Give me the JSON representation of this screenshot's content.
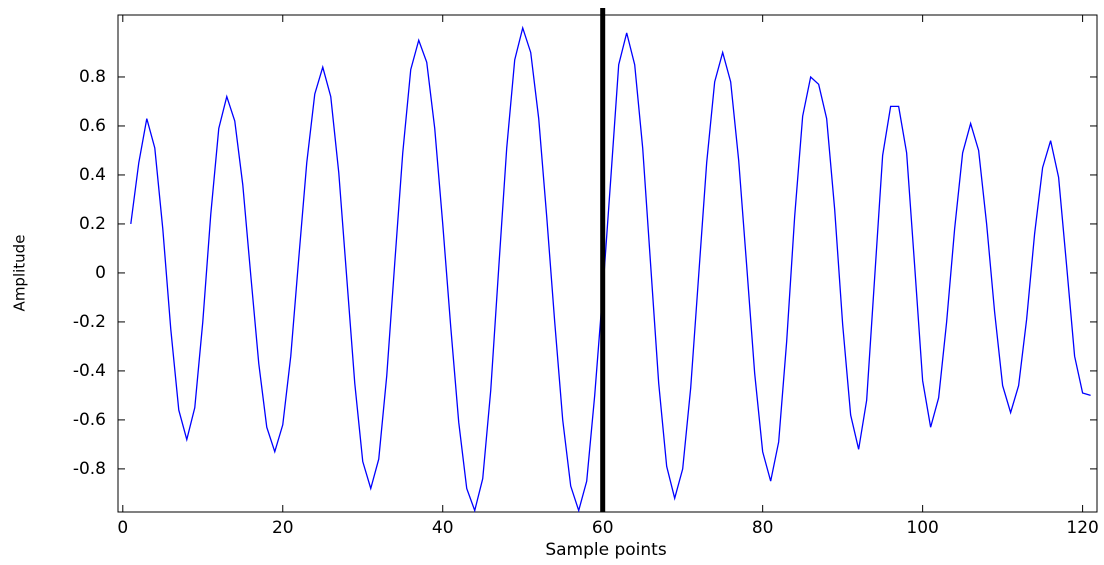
{
  "chart_data": {
    "type": "line",
    "x_label": "Sample points",
    "y_label": "Amplitude",
    "x": [
      1,
      2,
      3,
      4,
      5,
      6,
      7,
      8,
      9,
      10,
      11,
      12,
      13,
      14,
      15,
      16,
      17,
      18,
      19,
      20,
      21,
      22,
      23,
      24,
      25,
      26,
      27,
      28,
      29,
      30,
      31,
      32,
      33,
      34,
      35,
      36,
      37,
      38,
      39,
      40,
      41,
      42,
      43,
      44,
      45,
      46,
      47,
      48,
      49,
      50,
      51,
      52,
      53,
      54,
      55,
      56,
      57,
      58,
      59,
      60,
      61,
      62,
      63,
      64,
      65,
      66,
      67,
      68,
      69,
      70,
      71,
      72,
      73,
      74,
      75,
      76,
      77,
      78,
      79,
      80,
      81,
      82,
      83,
      84,
      85,
      86,
      87,
      88,
      89,
      90,
      91,
      92,
      93,
      94,
      95,
      96,
      97,
      98,
      99,
      100,
      101,
      102,
      103,
      104,
      105,
      106,
      107,
      108,
      109,
      110,
      111,
      112,
      113,
      114,
      115,
      116,
      117,
      118,
      119,
      120,
      121
    ],
    "series": [
      {
        "color": "#0000ff",
        "values": [
          0.2,
          0.45,
          0.63,
          0.51,
          0.18,
          -0.23,
          -0.56,
          -0.68,
          -0.55,
          -0.2,
          0.24,
          0.59,
          0.72,
          0.62,
          0.36,
          -0.01,
          -0.37,
          -0.63,
          -0.73,
          -0.62,
          -0.34,
          0.06,
          0.45,
          0.73,
          0.84,
          0.72,
          0.41,
          -0.02,
          -0.45,
          -0.77,
          -0.88,
          -0.76,
          -0.42,
          0.04,
          0.49,
          0.83,
          0.95,
          0.86,
          0.59,
          0.2,
          -0.22,
          -0.61,
          -0.88,
          -0.97,
          -0.84,
          -0.48,
          0.02,
          0.51,
          0.87,
          1.0,
          0.9,
          0.63,
          0.23,
          -0.2,
          -0.6,
          -0.87,
          -0.97,
          -0.85,
          -0.5,
          -0.08,
          0.38,
          0.85,
          0.98,
          0.85,
          0.51,
          0.03,
          -0.45,
          -0.79,
          -0.92,
          -0.8,
          -0.47,
          -0.01,
          0.45,
          0.78,
          0.9,
          0.78,
          0.46,
          0.03,
          -0.41,
          -0.73,
          -0.85,
          -0.69,
          -0.28,
          0.23,
          0.64,
          0.8,
          0.77,
          0.63,
          0.26,
          -0.21,
          -0.58,
          -0.72,
          -0.52,
          -0.02,
          0.48,
          0.68,
          0.68,
          0.49,
          0.03,
          -0.44,
          -0.63,
          -0.51,
          -0.2,
          0.18,
          0.49,
          0.61,
          0.5,
          0.2,
          -0.16,
          -0.46,
          -0.57,
          -0.46,
          -0.19,
          0.16,
          0.43,
          0.54,
          0.39,
          0.03,
          -0.34,
          -0.49,
          -0.5
        ]
      }
    ],
    "vertical_line": {
      "x": 60,
      "color": "#000000"
    },
    "xlim": [
      -0.6,
      121.8
    ],
    "ylim": [
      -0.976,
      1.053
    ],
    "xticks": [
      0,
      20,
      40,
      60,
      80,
      100,
      120
    ],
    "yticks": [
      -0.8,
      -0.6,
      -0.4,
      -0.2,
      0,
      0.2,
      0.4,
      0.6,
      0.8
    ]
  }
}
